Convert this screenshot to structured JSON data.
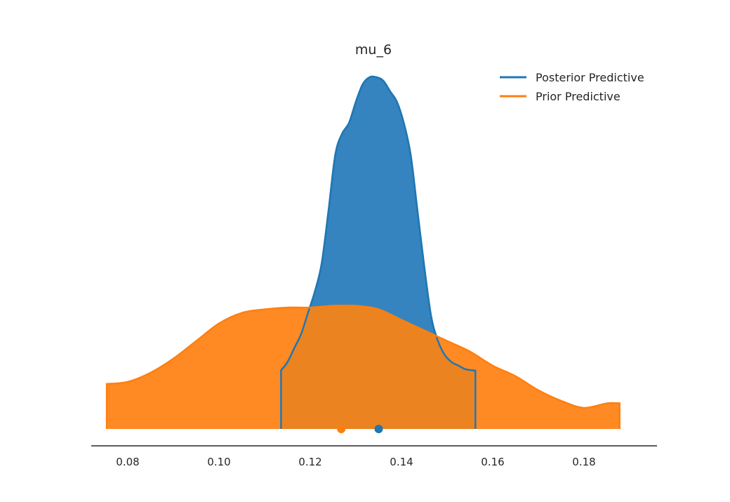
{
  "chart_data": {
    "type": "area",
    "title": "mu_6",
    "xlabel": "",
    "ylabel": "",
    "xlim": [
      0.072,
      0.196
    ],
    "ylim": [
      -0.04,
      1.0
    ],
    "grid": false,
    "legend_placement": "top-right",
    "x_ticks": [
      "0.08",
      "0.10",
      "0.12",
      "0.14",
      "0.16",
      "0.18"
    ],
    "x_tick_values": [
      0.08,
      0.1,
      0.12,
      0.14,
      0.16,
      0.18
    ],
    "series": [
      {
        "name": "Posterior Predictive",
        "color": "#1f77b4",
        "fill_color": "#3584bf",
        "x": [
          0.1136,
          0.115,
          0.1165,
          0.118,
          0.1195,
          0.121,
          0.1225,
          0.124,
          0.1255,
          0.127,
          0.1285,
          0.13,
          0.1315,
          0.133,
          0.1345,
          0.136,
          0.1375,
          0.139,
          0.1405,
          0.142,
          0.1435,
          0.145,
          0.1465,
          0.148,
          0.1495,
          0.151,
          0.1525,
          0.154,
          0.1555,
          0.1562
        ],
        "density": [
          0.167,
          0.19,
          0.23,
          0.27,
          0.33,
          0.39,
          0.47,
          0.62,
          0.78,
          0.84,
          0.87,
          0.93,
          0.98,
          1.0,
          1.0,
          0.99,
          0.96,
          0.93,
          0.87,
          0.78,
          0.62,
          0.46,
          0.32,
          0.25,
          0.21,
          0.19,
          0.18,
          0.17,
          0.167,
          0.166
        ],
        "hdi": [
          0.1136,
          0.1562
        ],
        "point_estimate": 0.135
      },
      {
        "name": "Prior Predictive",
        "color": "#ff7f0e",
        "fill_color": "#ff8a24",
        "x": [
          0.0754,
          0.08,
          0.085,
          0.09,
          0.095,
          0.1,
          0.105,
          0.11,
          0.115,
          0.12,
          0.125,
          0.13,
          0.135,
          0.14,
          0.145,
          0.15,
          0.155,
          0.16,
          0.165,
          0.17,
          0.175,
          0.18,
          0.185,
          0.1878
        ],
        "density": [
          0.128,
          0.134,
          0.16,
          0.2,
          0.25,
          0.3,
          0.33,
          0.34,
          0.345,
          0.345,
          0.35,
          0.35,
          0.34,
          0.31,
          0.28,
          0.25,
          0.22,
          0.18,
          0.15,
          0.11,
          0.08,
          0.06,
          0.073,
          0.073
        ],
        "hdi": [
          0.1136,
          0.1562
        ],
        "point_estimate": 0.1268
      }
    ]
  }
}
